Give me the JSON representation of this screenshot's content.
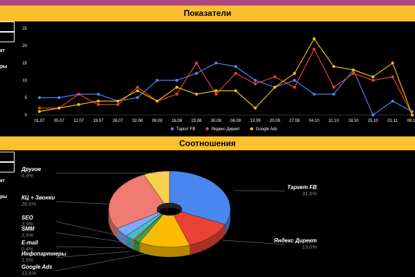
{
  "header": {
    "chart1_title": "Показатели",
    "chart2_title": "Соотношения"
  },
  "side_fragments": [
    "кт",
    "ры",
    "кт",
    "ры",
    "кт"
  ],
  "colors": {
    "header_band": "#fbc02d",
    "top_strip": "#b04a7e",
    "target_fb": "#4a86f0",
    "yandex": "#ea4335",
    "google_ads": "#fbbc04"
  },
  "chart_data": [
    {
      "type": "line",
      "title": "Показатели",
      "x": [
        "01.07",
        "05.07",
        "12.07",
        "19.07",
        "26.07",
        "02.08",
        "09.08",
        "16.08",
        "23.08",
        "30.08",
        "06.09",
        "13.09",
        "20.09",
        "27.09",
        "04.10",
        "11.10",
        "18.10",
        "25.10",
        "01.11",
        "08.11"
      ],
      "ylim": [
        0,
        25
      ],
      "yticks": [
        0,
        5,
        10,
        15,
        20,
        25
      ],
      "grid": false,
      "legend": "bottom",
      "series": [
        {
          "name": "Таргет FB",
          "color": "#4a86f0",
          "values": [
            5,
            5,
            6,
            6,
            4,
            5,
            10,
            10,
            12,
            15,
            14,
            10,
            8,
            10,
            6,
            6,
            13,
            0,
            4,
            1
          ]
        },
        {
          "name": "Яндекс Директ",
          "color": "#ea4335",
          "values": [
            2,
            2,
            6,
            3,
            3,
            8,
            4,
            6,
            15,
            6,
            12,
            9,
            11,
            8,
            19,
            8,
            12,
            10,
            11,
            0
          ]
        },
        {
          "name": "Google Ads",
          "color": "#fbbc04",
          "values": [
            1,
            2,
            3,
            4,
            4,
            7,
            4,
            8,
            6,
            7,
            7,
            2,
            8,
            12,
            22,
            14,
            13,
            11,
            15,
            0
          ]
        }
      ]
    },
    {
      "type": "pie",
      "title": "Соотношения",
      "slices": [
        {
          "label": "Таргет FB",
          "pct": "31,6%",
          "value": 31.6,
          "color": "#4a86f0"
        },
        {
          "label": "Яндекс Директ",
          "pct": "13,0%",
          "value": 13.0,
          "color": "#ea4335"
        },
        {
          "label": "Google Ads",
          "pct": "13,6%",
          "value": 13.6,
          "color": "#fbbc04"
        },
        {
          "label": "Инфопартнеры",
          "pct": "1,5%",
          "value": 1.5,
          "color": "#34a853"
        },
        {
          "label": "E-mail",
          "pct": "0,4%",
          "value": 0.4,
          "color": "#ff6d01"
        },
        {
          "label": "SMM",
          "pct": "2,5%",
          "value": 2.5,
          "color": "#46bdc6"
        },
        {
          "label": "SEO",
          "pct": "3,9%",
          "value": 3.9,
          "color": "#7baaf7"
        },
        {
          "label": "КЦ + Звонки",
          "pct": "26,6%",
          "value": 26.6,
          "color": "#f07b72"
        },
        {
          "label": "Другое",
          "pct": "6,9%",
          "value": 6.9,
          "color": "#fcd04f"
        }
      ]
    }
  ]
}
